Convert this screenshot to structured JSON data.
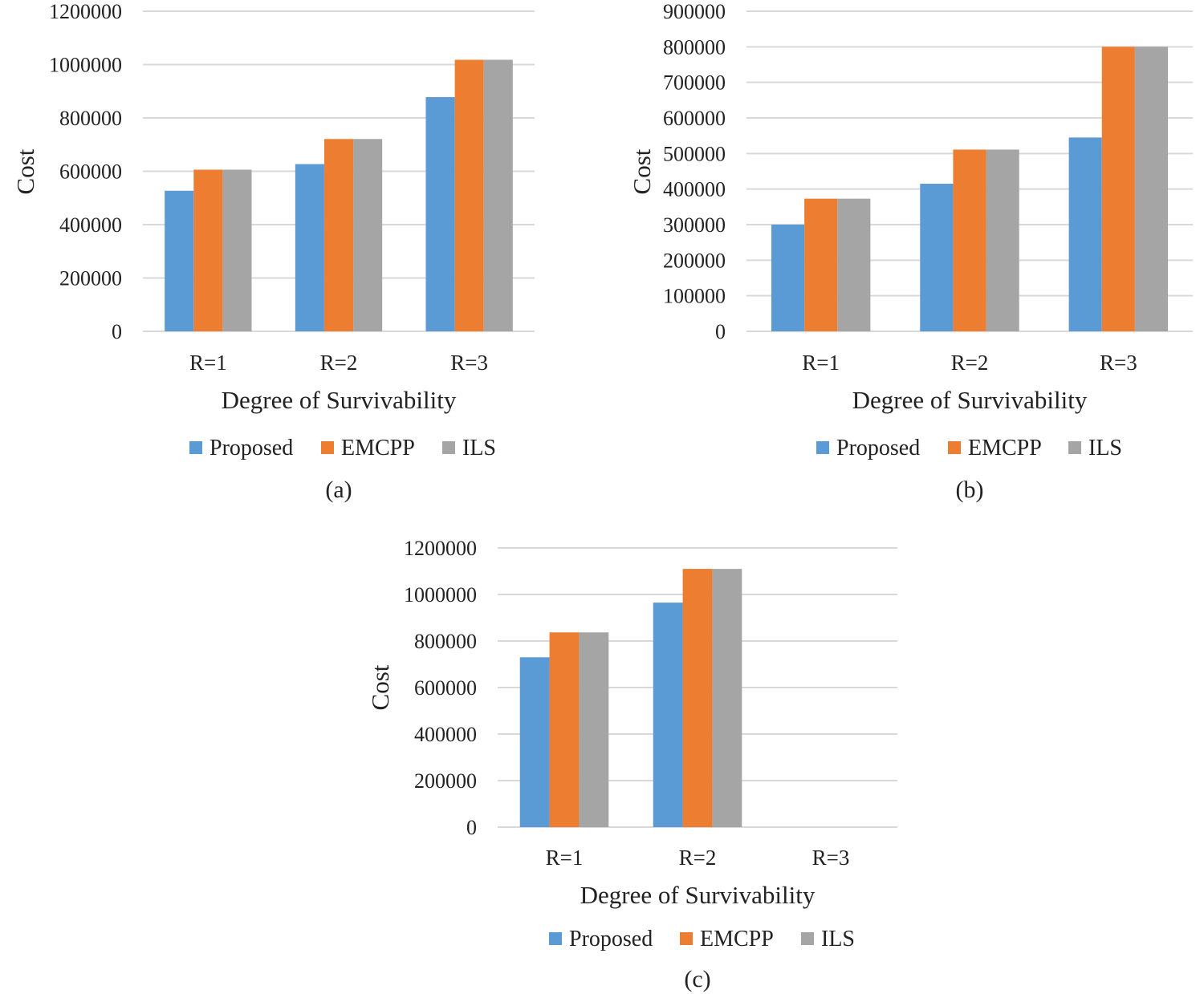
{
  "colors": {
    "Proposed": "#5b9bd5",
    "EMCPP": "#ed7d31",
    "ILS": "#a5a5a5"
  },
  "chart_data": [
    {
      "type": "bar",
      "panel_label": "(a)",
      "xlabel": "Degree of Survivability",
      "ylabel": "Cost",
      "ylim": [
        0,
        1200000
      ],
      "yticks": [
        "0",
        "200000",
        "400000",
        "600000",
        "800000",
        "1000000",
        "1200000"
      ],
      "categories": [
        "R=1",
        "R=2",
        "R=3"
      ],
      "series": [
        {
          "name": "Proposed",
          "values": [
            527000,
            627000,
            878000
          ]
        },
        {
          "name": "EMCPP",
          "values": [
            606000,
            721000,
            1018000
          ]
        },
        {
          "name": "ILS",
          "values": [
            606000,
            721000,
            1018000
          ]
        }
      ],
      "legend": "bottom"
    },
    {
      "type": "bar",
      "panel_label": "(b)",
      "xlabel": "Degree of Survivability",
      "ylabel": "Cost",
      "ylim": [
        0,
        900000
      ],
      "yticks": [
        "0",
        "100000",
        "200000",
        "300000",
        "400000",
        "500000",
        "600000",
        "700000",
        "800000",
        "900000"
      ],
      "categories": [
        "R=1",
        "R=2",
        "R=3"
      ],
      "series": [
        {
          "name": "Proposed",
          "values": [
            300000,
            415000,
            545000
          ]
        },
        {
          "name": "EMCPP",
          "values": [
            373000,
            511000,
            800000
          ]
        },
        {
          "name": "ILS",
          "values": [
            373000,
            511000,
            800000
          ]
        }
      ],
      "legend": "bottom"
    },
    {
      "type": "bar",
      "panel_label": "(c)",
      "xlabel": "Degree of Survivability",
      "ylabel": "Cost",
      "ylim": [
        0,
        1200000
      ],
      "yticks": [
        "0",
        "200000",
        "400000",
        "600000",
        "800000",
        "1000000",
        "1200000"
      ],
      "categories": [
        "R=1",
        "R=2",
        "R=3"
      ],
      "series": [
        {
          "name": "Proposed",
          "values": [
            730000,
            965000,
            0
          ]
        },
        {
          "name": "EMCPP",
          "values": [
            837000,
            1110000,
            0
          ]
        },
        {
          "name": "ILS",
          "values": [
            837000,
            1110000,
            0
          ]
        }
      ],
      "legend": "bottom"
    }
  ]
}
